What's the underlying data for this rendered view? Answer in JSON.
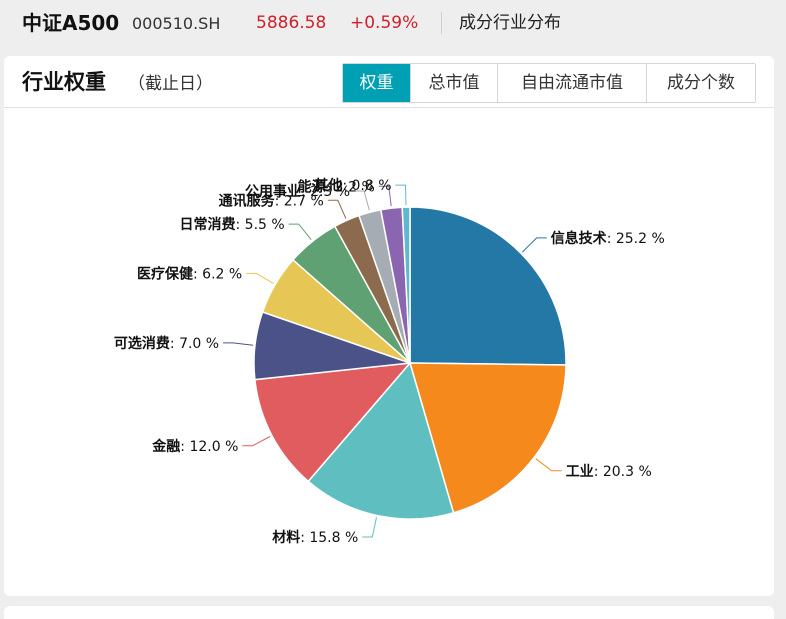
{
  "header": {
    "name": "中证A500",
    "code": "000510.SH",
    "price": "5886.58",
    "change": "+0.59%",
    "section_title": "成分行业分布"
  },
  "card": {
    "title": "行业权重",
    "subtitle": "（截止日）",
    "tabs": [
      "权重",
      "总市值",
      "自由流通市值",
      "成分个数"
    ],
    "active_tab": 0
  },
  "colors": {
    "accent": "#00a0b4",
    "price_up": "#d0202c"
  },
  "chart_data": {
    "type": "pie",
    "unit": "%",
    "start_angle_deg": 0,
    "direction": "clockwise",
    "slices": [
      {
        "label": "信息技术",
        "value": 25.2,
        "color": "#2478a6"
      },
      {
        "label": "工业",
        "value": 20.3,
        "color": "#f5891c"
      },
      {
        "label": "材料",
        "value": 15.8,
        "color": "#5fbfc0"
      },
      {
        "label": "金融",
        "value": 12.0,
        "color": "#e05c5f"
      },
      {
        "label": "可选消费",
        "value": 7.0,
        "color": "#4b5288"
      },
      {
        "label": "医疗保健",
        "value": 6.2,
        "color": "#e6c654"
      },
      {
        "label": "日常消费",
        "value": 5.5,
        "color": "#5fa172"
      },
      {
        "label": "通讯服务",
        "value": 2.7,
        "color": "#8c6a4d"
      },
      {
        "label": "公用事业",
        "value": 2.3,
        "color": "#a5acb4"
      },
      {
        "label": "能源",
        "value": 2.2,
        "color": "#8b65b0"
      },
      {
        "label": "其他",
        "value": 0.8,
        "color": "#5fb8d0"
      }
    ]
  }
}
